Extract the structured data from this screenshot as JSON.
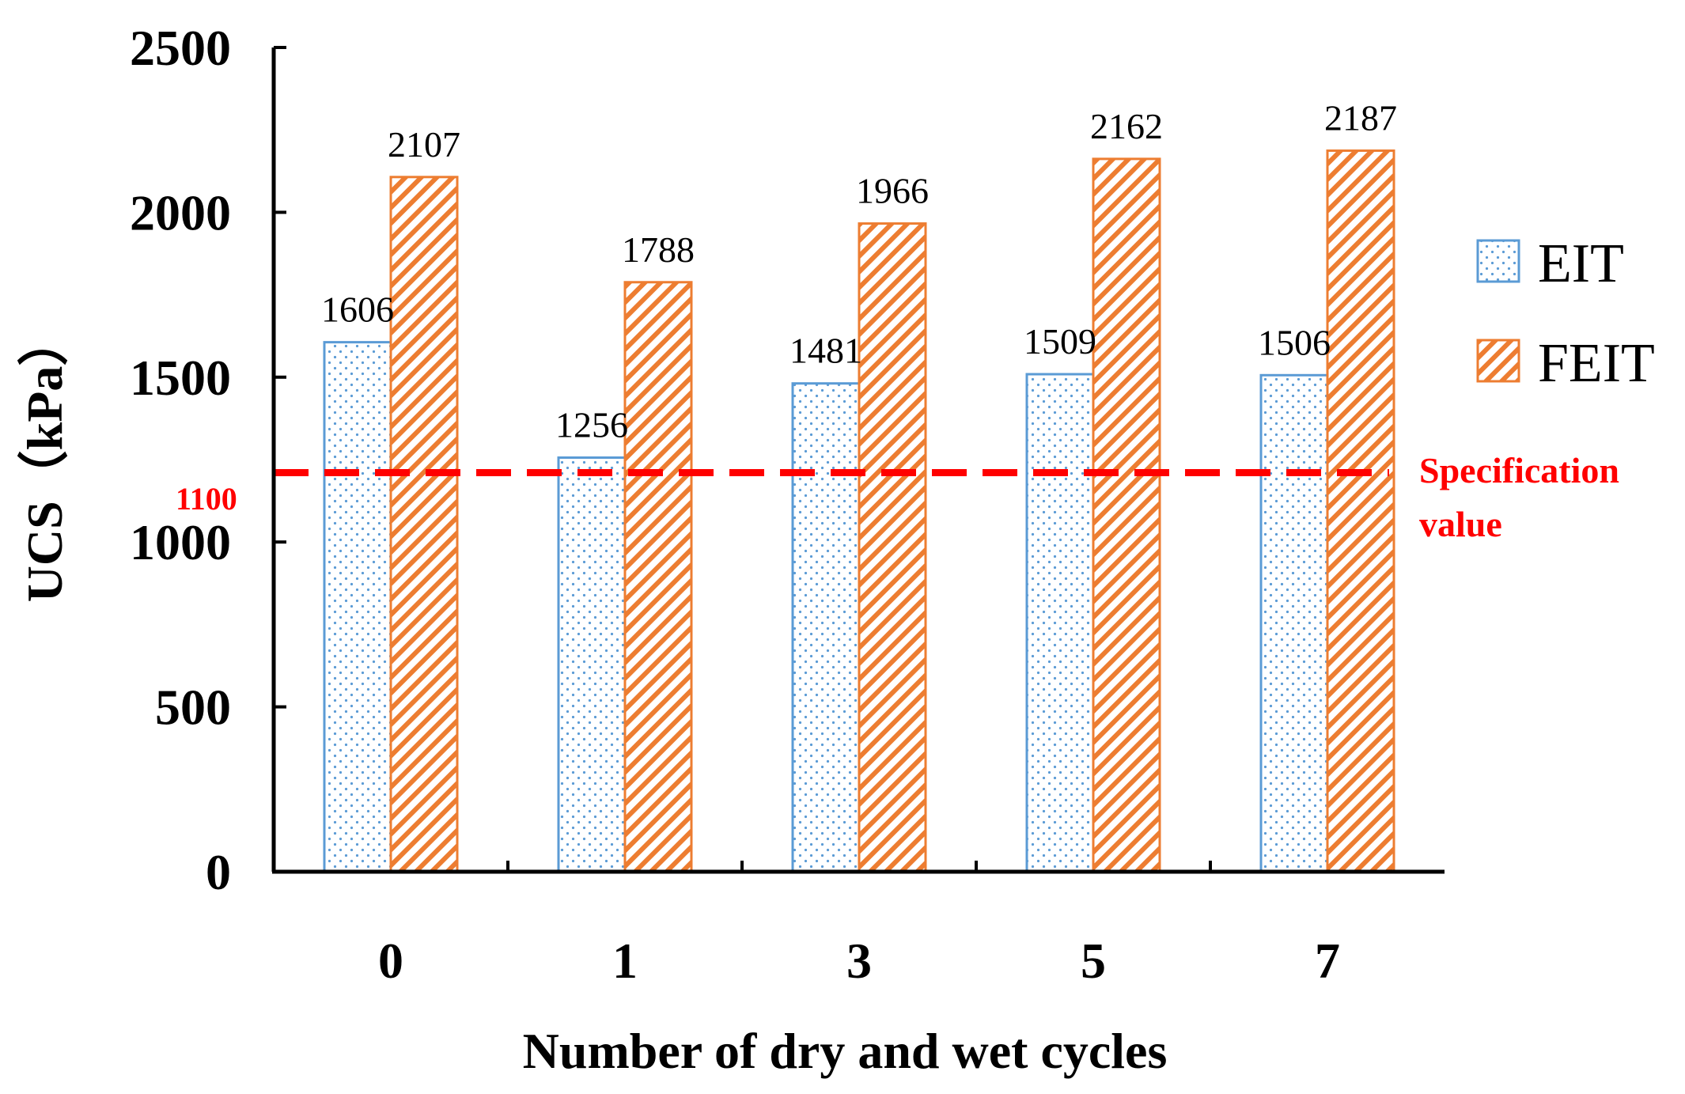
{
  "chart_data": {
    "type": "bar",
    "title": "",
    "xlabel": "Number of dry and wet cycles",
    "ylabel": "UCS（kPa）",
    "categories": [
      "0",
      "1",
      "3",
      "5",
      "7"
    ],
    "ylim": [
      0,
      2500
    ],
    "yticks": [
      "0",
      "500",
      "1000",
      "1500",
      "2000",
      "2500"
    ],
    "grid": false,
    "legend_position": "right",
    "series": [
      {
        "name": "EIT",
        "values": [
          1606,
          1256,
          1481,
          1509,
          1506
        ],
        "labels": [
          "1606",
          "1256",
          "1481",
          "1509",
          "1506"
        ],
        "color": "#5b9bd5",
        "pattern": "dots"
      },
      {
        "name": "FEIT",
        "values": [
          2107,
          1788,
          1966,
          2162,
          2187
        ],
        "labels": [
          "2107",
          "1788",
          "1966",
          "2162",
          "2187"
        ],
        "color": "#ed7d31",
        "pattern": "diagonal-hatch"
      }
    ],
    "reference_line": {
      "value": 1100,
      "value_label": "1100",
      "label_line1": "Specification",
      "label_line2": "value",
      "color": "#ff0000",
      "style": "dashed"
    }
  }
}
